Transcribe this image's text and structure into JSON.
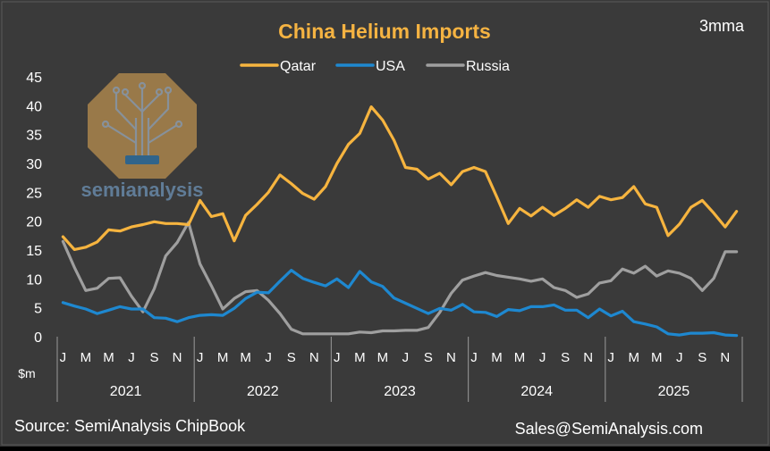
{
  "colors": {
    "background": "#3a3a3a",
    "frame": "#5a5a5a",
    "title": "#f5b342",
    "text": "#ffffff",
    "qatar": "#f6b43f",
    "usa": "#1e88d0",
    "russia": "#9f9f9f",
    "logo_tan": "#b98e4e"
  },
  "header": {
    "title": "China Helium Imports",
    "note": "3mma"
  },
  "footer": {
    "source": "Source: SemiAnalysis ChipBook",
    "contact": "Sales@SemiAnalysis.com"
  },
  "watermark": {
    "text": "semianalysis"
  },
  "chart_data": {
    "type": "line",
    "title": "China Helium Imports",
    "ylabel": "$m",
    "xlabel": "",
    "ylim": [
      0,
      45
    ],
    "yticks": [
      0,
      5,
      10,
      15,
      20,
      25,
      30,
      35,
      40,
      45
    ],
    "grid": false,
    "legend_position": "top-center",
    "month_ticks": [
      "J",
      "M",
      "M",
      "J",
      "S",
      "N",
      "J",
      "M",
      "M",
      "J",
      "S",
      "N",
      "J",
      "M",
      "M",
      "J",
      "S",
      "N",
      "J",
      "M",
      "M",
      "J",
      "S",
      "N",
      "J",
      "M",
      "M",
      "J",
      "S",
      "N"
    ],
    "years": [
      "2021",
      "2022",
      "2023",
      "2024",
      "2025"
    ],
    "x": [
      "2021-01",
      "2021-02",
      "2021-03",
      "2021-04",
      "2021-05",
      "2021-06",
      "2021-07",
      "2021-08",
      "2021-09",
      "2021-10",
      "2021-11",
      "2021-12",
      "2022-01",
      "2022-02",
      "2022-03",
      "2022-04",
      "2022-05",
      "2022-06",
      "2022-07",
      "2022-08",
      "2022-09",
      "2022-10",
      "2022-11",
      "2022-12",
      "2023-01",
      "2023-02",
      "2023-03",
      "2023-04",
      "2023-05",
      "2023-06",
      "2023-07",
      "2023-08",
      "2023-09",
      "2023-10",
      "2023-11",
      "2023-12",
      "2024-01",
      "2024-02",
      "2024-03",
      "2024-04",
      "2024-05",
      "2024-06",
      "2024-07",
      "2024-08",
      "2024-09",
      "2024-10",
      "2024-11",
      "2024-12",
      "2025-01",
      "2025-02",
      "2025-03",
      "2025-04",
      "2025-05",
      "2025-06",
      "2025-07",
      "2025-08",
      "2025-09",
      "2025-10",
      "2025-11",
      "2025-12"
    ],
    "series": [
      {
        "name": "Qatar",
        "values": [
          17.3,
          15.1,
          15.5,
          16.4,
          18.5,
          18.3,
          19.0,
          19.4,
          19.9,
          19.6,
          19.6,
          19.4,
          23.6,
          20.8,
          21.3,
          16.6,
          21.0,
          22.9,
          25.0,
          28.0,
          26.5,
          24.8,
          23.8,
          26.0,
          30.0,
          33.3,
          35.2,
          39.8,
          37.5,
          34.0,
          29.3,
          29.0,
          27.3,
          28.3,
          26.3,
          28.6,
          29.3,
          28.6,
          24.2,
          19.6,
          22.2,
          20.9,
          22.4,
          21.0,
          22.2,
          23.7,
          22.4,
          24.3,
          23.7,
          24.1,
          26.0,
          23.0,
          22.4,
          17.5,
          19.5,
          22.4,
          23.6,
          21.4,
          19.0,
          21.7
        ]
      },
      {
        "name": "USA",
        "values": [
          5.9,
          5.3,
          4.8,
          4.0,
          4.6,
          5.2,
          4.8,
          4.8,
          3.3,
          3.2,
          2.6,
          3.3,
          3.7,
          3.8,
          3.7,
          4.9,
          6.6,
          7.7,
          7.6,
          9.6,
          11.5,
          10.1,
          9.4,
          8.8,
          10.0,
          8.5,
          11.3,
          9.5,
          8.7,
          6.7,
          5.8,
          4.9,
          4.0,
          4.9,
          4.6,
          5.6,
          4.3,
          4.2,
          3.5,
          4.7,
          4.5,
          5.2,
          5.2,
          5.5,
          4.6,
          4.6,
          3.3,
          4.8,
          3.6,
          4.4,
          2.6,
          2.2,
          1.7,
          0.5,
          0.3,
          0.6,
          0.6,
          0.7,
          0.3,
          0.2
        ]
      },
      {
        "name": "Russia",
        "values": [
          16.5,
          12.0,
          8.0,
          8.4,
          10.1,
          10.2,
          7.0,
          4.3,
          8.3,
          14.0,
          16.3,
          19.8,
          12.6,
          8.8,
          4.8,
          6.6,
          7.8,
          8.0,
          6.3,
          4.0,
          1.3,
          0.5,
          0.5,
          0.5,
          0.5,
          0.5,
          0.8,
          0.7,
          1.0,
          1.0,
          1.1,
          1.1,
          1.6,
          4.2,
          7.5,
          9.8,
          10.5,
          11.1,
          10.6,
          10.3,
          10.0,
          9.6,
          10.0,
          8.5,
          8.0,
          6.8,
          7.4,
          9.3,
          9.7,
          11.7,
          11.0,
          12.2,
          10.5,
          11.4,
          11.0,
          10.1,
          8.0,
          10.1,
          14.7,
          14.7
        ]
      }
    ]
  }
}
